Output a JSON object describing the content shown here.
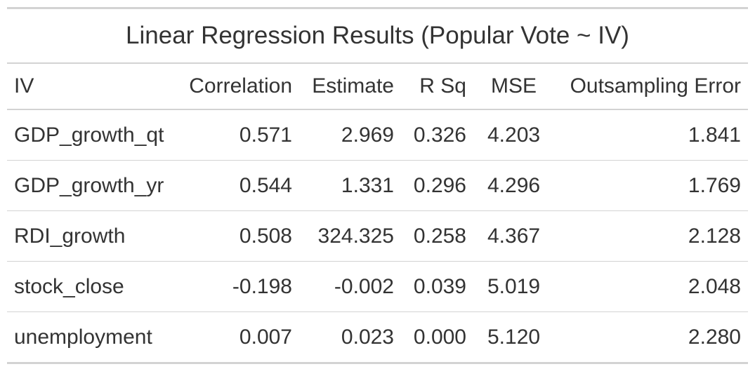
{
  "title": "Linear Regression Results (Popular Vote ~ IV)",
  "columns": {
    "iv": "IV",
    "correlation": "Correlation",
    "estimate": "Estimate",
    "r_sq": "R Sq",
    "mse": "MSE",
    "outsampling_error": "Outsampling Error"
  },
  "rows": [
    {
      "iv": "GDP_growth_qt",
      "correlation": "0.571",
      "estimate": "2.969",
      "r_sq": "0.326",
      "mse": "4.203",
      "outsampling_error": "1.841"
    },
    {
      "iv": "GDP_growth_yr",
      "correlation": "0.544",
      "estimate": "1.331",
      "r_sq": "0.296",
      "mse": "4.296",
      "outsampling_error": "1.769"
    },
    {
      "iv": "RDI_growth",
      "correlation": "0.508",
      "estimate": "324.325",
      "r_sq": "0.258",
      "mse": "4.367",
      "outsampling_error": "2.128"
    },
    {
      "iv": "stock_close",
      "correlation": "-0.198",
      "estimate": "-0.002",
      "r_sq": "0.039",
      "mse": "5.019",
      "outsampling_error": "2.048"
    },
    {
      "iv": "unemployment",
      "correlation": "0.007",
      "estimate": "0.023",
      "r_sq": "0.000",
      "mse": "5.120",
      "outsampling_error": "2.280"
    }
  ]
}
